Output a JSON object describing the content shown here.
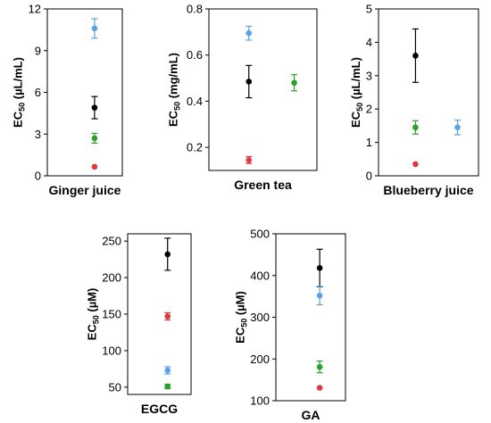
{
  "colors": {
    "black": "#000000",
    "red": "#e0393e",
    "green": "#2aa02a",
    "blue": "#5aa2e6"
  },
  "chart_data": [
    {
      "type": "scatter",
      "title": "Ginger juice",
      "ylabel_main": "EC",
      "ylabel_sub": "50",
      "ylabel_unit": " (µL/mL)",
      "ylim": [
        0,
        12
      ],
      "yticks": [
        0,
        3,
        6,
        9,
        12
      ],
      "points": [
        {
          "color": "blue",
          "x": 1,
          "y": 10.6,
          "err": 0.7
        },
        {
          "color": "black",
          "x": 1,
          "y": 4.9,
          "err": 0.8
        },
        {
          "color": "green",
          "x": 1,
          "y": 2.7,
          "err": 0.35
        },
        {
          "color": "red",
          "x": 1,
          "y": 0.65,
          "err": 0
        }
      ]
    },
    {
      "type": "scatter",
      "title": "Green tea",
      "ylabel_main": "EC",
      "ylabel_sub": "50",
      "ylabel_unit": " (mg/mL)",
      "ylim": [
        0.1,
        0.8
      ],
      "yticks": [
        0.2,
        0.4,
        0.6,
        0.8
      ],
      "yticklabels": [
        "0.2",
        "0.4",
        "0.6",
        "0.8"
      ],
      "points": [
        {
          "color": "blue",
          "x": 1,
          "y": 0.695,
          "err": 0.03
        },
        {
          "color": "black",
          "x": 1,
          "y": 0.485,
          "err": 0.07
        },
        {
          "color": "green",
          "x": 2,
          "y": 0.48,
          "err": 0.035
        },
        {
          "color": "red",
          "x": 1,
          "y": 0.145,
          "err": 0.015
        }
      ]
    },
    {
      "type": "scatter",
      "title": "Blueberry juice",
      "ylabel_main": "EC",
      "ylabel_sub": "50",
      "ylabel_unit": " (µL/mL)",
      "ylim": [
        0,
        5
      ],
      "yticks": [
        0,
        1,
        2,
        3,
        4,
        5
      ],
      "points": [
        {
          "color": "black",
          "x": 1,
          "y": 3.6,
          "err": 0.8
        },
        {
          "color": "green",
          "x": 1,
          "y": 1.45,
          "err": 0.2
        },
        {
          "color": "blue",
          "x": 2,
          "y": 1.45,
          "err": 0.22
        },
        {
          "color": "red",
          "x": 1,
          "y": 0.35,
          "err": 0
        }
      ]
    },
    {
      "type": "scatter",
      "title": "EGCG",
      "ylabel_main": "EC",
      "ylabel_sub": "50",
      "ylabel_unit": " (µM)",
      "ylim": [
        40,
        260
      ],
      "yticks": [
        50,
        100,
        150,
        200,
        250
      ],
      "points": [
        {
          "color": "black",
          "x": 1,
          "y": 232,
          "err": 22
        },
        {
          "color": "red",
          "x": 1,
          "y": 147,
          "err": 5
        },
        {
          "color": "blue",
          "x": 1,
          "y": 73,
          "err": 5
        },
        {
          "color": "green",
          "x": 1,
          "y": 51,
          "err": 3
        }
      ]
    },
    {
      "type": "scatter",
      "title": "GA",
      "ylabel_main": "EC",
      "ylabel_sub": "50",
      "ylabel_unit": " (µM)",
      "ylim": [
        100,
        500
      ],
      "yticks": [
        100,
        200,
        300,
        400,
        500
      ],
      "points": [
        {
          "color": "black",
          "x": 1,
          "y": 418,
          "err": 45
        },
        {
          "color": "blue",
          "x": 1,
          "y": 352,
          "err": 22
        },
        {
          "color": "green",
          "x": 1,
          "y": 181,
          "err": 14
        },
        {
          "color": "red",
          "x": 1,
          "y": 131,
          "err": 0
        }
      ]
    }
  ]
}
